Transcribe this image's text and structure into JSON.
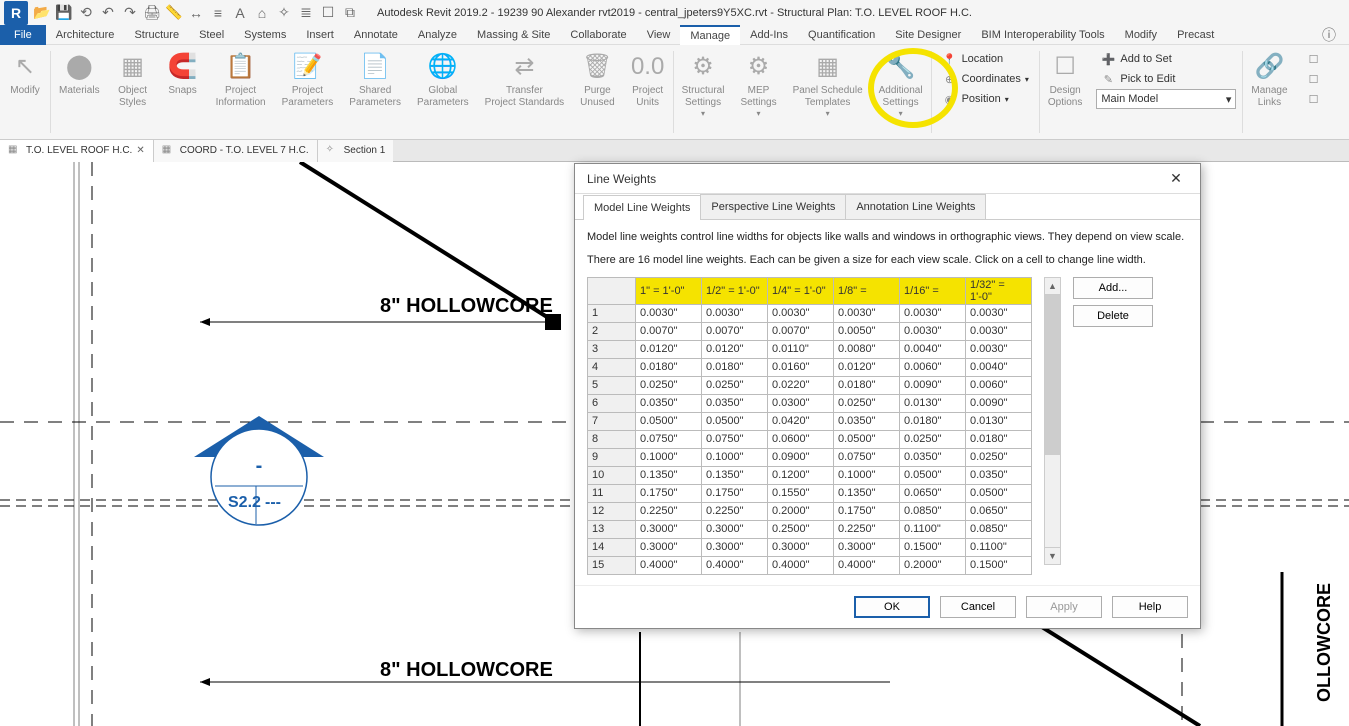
{
  "title": "Autodesk Revit 2019.2 - 19239 90 Alexander rvt2019 - central_jpeters9Y5XC.rvt - Structural Plan: T.O. LEVEL ROOF H.C.",
  "file_label": "File",
  "menus": [
    "Architecture",
    "Structure",
    "Steel",
    "Systems",
    "Insert",
    "Annotate",
    "Analyze",
    "Massing & Site",
    "Collaborate",
    "View",
    "Manage",
    "Add-Ins",
    "Quantification",
    "Site Designer",
    "BIM Interoperability Tools",
    "Modify",
    "Precast"
  ],
  "active_menu": "Manage",
  "ribbon": {
    "modify": "Modify",
    "materials": "Materials",
    "object_styles": "Object\nStyles",
    "snaps": "Snaps",
    "project_info": "Project\nInformation",
    "project_params": "Project\nParameters",
    "shared_params": "Shared\nParameters",
    "global_params": "Global\nParameters",
    "transfer": "Transfer\nProject Standards",
    "purge": "Purge\nUnused",
    "units": "Project\nUnits",
    "struct_settings": "Structural\nSettings",
    "mep_settings": "MEP\nSettings",
    "panel_sched": "Panel Schedule\nTemplates",
    "addl_settings": "Additional\nSettings",
    "location": "Location",
    "coords": "Coordinates",
    "position": "Position",
    "design_opts": "Design\nOptions",
    "add_to_set": "Add to Set",
    "pick_edit": "Pick to Edit",
    "main_model": "Main Model",
    "manage_links": "Manage\nLinks"
  },
  "viewtabs": {
    "t1": "T.O. LEVEL ROOF H.C.",
    "t2": "COORD - T.O. LEVEL 7 H.C.",
    "t3": "Section 1"
  },
  "canvas": {
    "hollowcore": "8\" HOLLOWCORE",
    "section_tag": "S2.2",
    "section_dash": "---",
    "section_bubble": "-"
  },
  "dialog": {
    "title": "Line Weights",
    "tabs": [
      "Model Line Weights",
      "Perspective Line Weights",
      "Annotation Line Weights"
    ],
    "active_tab": 0,
    "desc1": "Model line weights control line widths for objects like walls and windows in orthographic views. They depend on view scale.",
    "desc2": "There are 16 model line weights. Each can be given a size for each view scale. Click on a cell to change line width.",
    "headers": [
      "1\" = 1'-0\"",
      "1/2\" = 1'-0\"",
      "1/4\" = 1'-0\"",
      "1/8\" =",
      "1/16\" =",
      "1/32\" = 1'-0\""
    ],
    "rows": [
      {
        "n": "1",
        "v": [
          "0.0030\"",
          "0.0030\"",
          "0.0030\"",
          "0.0030\"",
          "0.0030\"",
          "0.0030\""
        ]
      },
      {
        "n": "2",
        "v": [
          "0.0070\"",
          "0.0070\"",
          "0.0070\"",
          "0.0050\"",
          "0.0030\"",
          "0.0030\""
        ]
      },
      {
        "n": "3",
        "v": [
          "0.0120\"",
          "0.0120\"",
          "0.0110\"",
          "0.0080\"",
          "0.0040\"",
          "0.0030\""
        ]
      },
      {
        "n": "4",
        "v": [
          "0.0180\"",
          "0.0180\"",
          "0.0160\"",
          "0.0120\"",
          "0.0060\"",
          "0.0040\""
        ]
      },
      {
        "n": "5",
        "v": [
          "0.0250\"",
          "0.0250\"",
          "0.0220\"",
          "0.0180\"",
          "0.0090\"",
          "0.0060\""
        ]
      },
      {
        "n": "6",
        "v": [
          "0.0350\"",
          "0.0350\"",
          "0.0300\"",
          "0.0250\"",
          "0.0130\"",
          "0.0090\""
        ]
      },
      {
        "n": "7",
        "v": [
          "0.0500\"",
          "0.0500\"",
          "0.0420\"",
          "0.0350\"",
          "0.0180\"",
          "0.0130\""
        ]
      },
      {
        "n": "8",
        "v": [
          "0.0750\"",
          "0.0750\"",
          "0.0600\"",
          "0.0500\"",
          "0.0250\"",
          "0.0180\""
        ]
      },
      {
        "n": "9",
        "v": [
          "0.1000\"",
          "0.1000\"",
          "0.0900\"",
          "0.0750\"",
          "0.0350\"",
          "0.0250\""
        ]
      },
      {
        "n": "10",
        "v": [
          "0.1350\"",
          "0.1350\"",
          "0.1200\"",
          "0.1000\"",
          "0.0500\"",
          "0.0350\""
        ]
      },
      {
        "n": "11",
        "v": [
          "0.1750\"",
          "0.1750\"",
          "0.1550\"",
          "0.1350\"",
          "0.0650\"",
          "0.0500\""
        ]
      },
      {
        "n": "12",
        "v": [
          "0.2250\"",
          "0.2250\"",
          "0.2000\"",
          "0.1750\"",
          "0.0850\"",
          "0.0650\""
        ]
      },
      {
        "n": "13",
        "v": [
          "0.3000\"",
          "0.3000\"",
          "0.2500\"",
          "0.2250\"",
          "0.1100\"",
          "0.0850\""
        ]
      },
      {
        "n": "14",
        "v": [
          "0.3000\"",
          "0.3000\"",
          "0.3000\"",
          "0.3000\"",
          "0.1500\"",
          "0.1100\""
        ]
      },
      {
        "n": "15",
        "v": [
          "0.4000\"",
          "0.4000\"",
          "0.4000\"",
          "0.4000\"",
          "0.2000\"",
          "0.1500\""
        ]
      }
    ],
    "add": "Add...",
    "delete": "Delete",
    "ok": "OK",
    "cancel": "Cancel",
    "apply": "Apply",
    "help": "Help"
  },
  "colors": {
    "highlight": "#f5e300",
    "revit_blue": "#1b5faa",
    "section_fill": "#1b5faa"
  }
}
